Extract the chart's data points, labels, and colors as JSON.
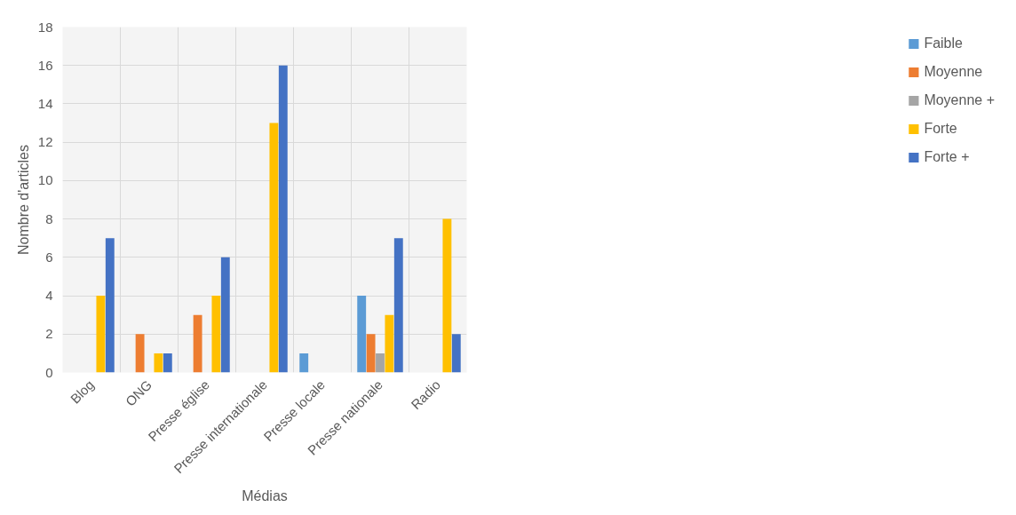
{
  "chart_data": {
    "type": "bar",
    "xlabel": "Médias",
    "ylabel": "Nombre d'articles",
    "categories": [
      "Blog",
      "ONG",
      "Presse église",
      "Presse internationale",
      "Presse locale",
      "Presse nationale",
      "Radio"
    ],
    "series": [
      {
        "name": "Faible",
        "color": "#5b9bd5",
        "values": [
          0,
          0,
          0,
          0,
          1,
          4,
          0
        ]
      },
      {
        "name": "Moyenne",
        "color": "#ed7d31",
        "values": [
          0,
          2,
          3,
          0,
          0,
          2,
          0
        ]
      },
      {
        "name": "Moyenne +",
        "color": "#a5a5a5",
        "values": [
          0,
          0,
          0,
          0,
          0,
          1,
          0
        ]
      },
      {
        "name": "Forte",
        "color": "#ffc000",
        "values": [
          4,
          1,
          4,
          13,
          0,
          3,
          8
        ]
      },
      {
        "name": "Forte +",
        "color": "#4472c4",
        "values": [
          7,
          1,
          6,
          16,
          0,
          7,
          2
        ]
      }
    ],
    "ylim": [
      0,
      18
    ],
    "yticks": [
      0,
      2,
      4,
      6,
      8,
      10,
      12,
      14,
      16,
      18
    ],
    "grid": true,
    "legend": "right"
  }
}
